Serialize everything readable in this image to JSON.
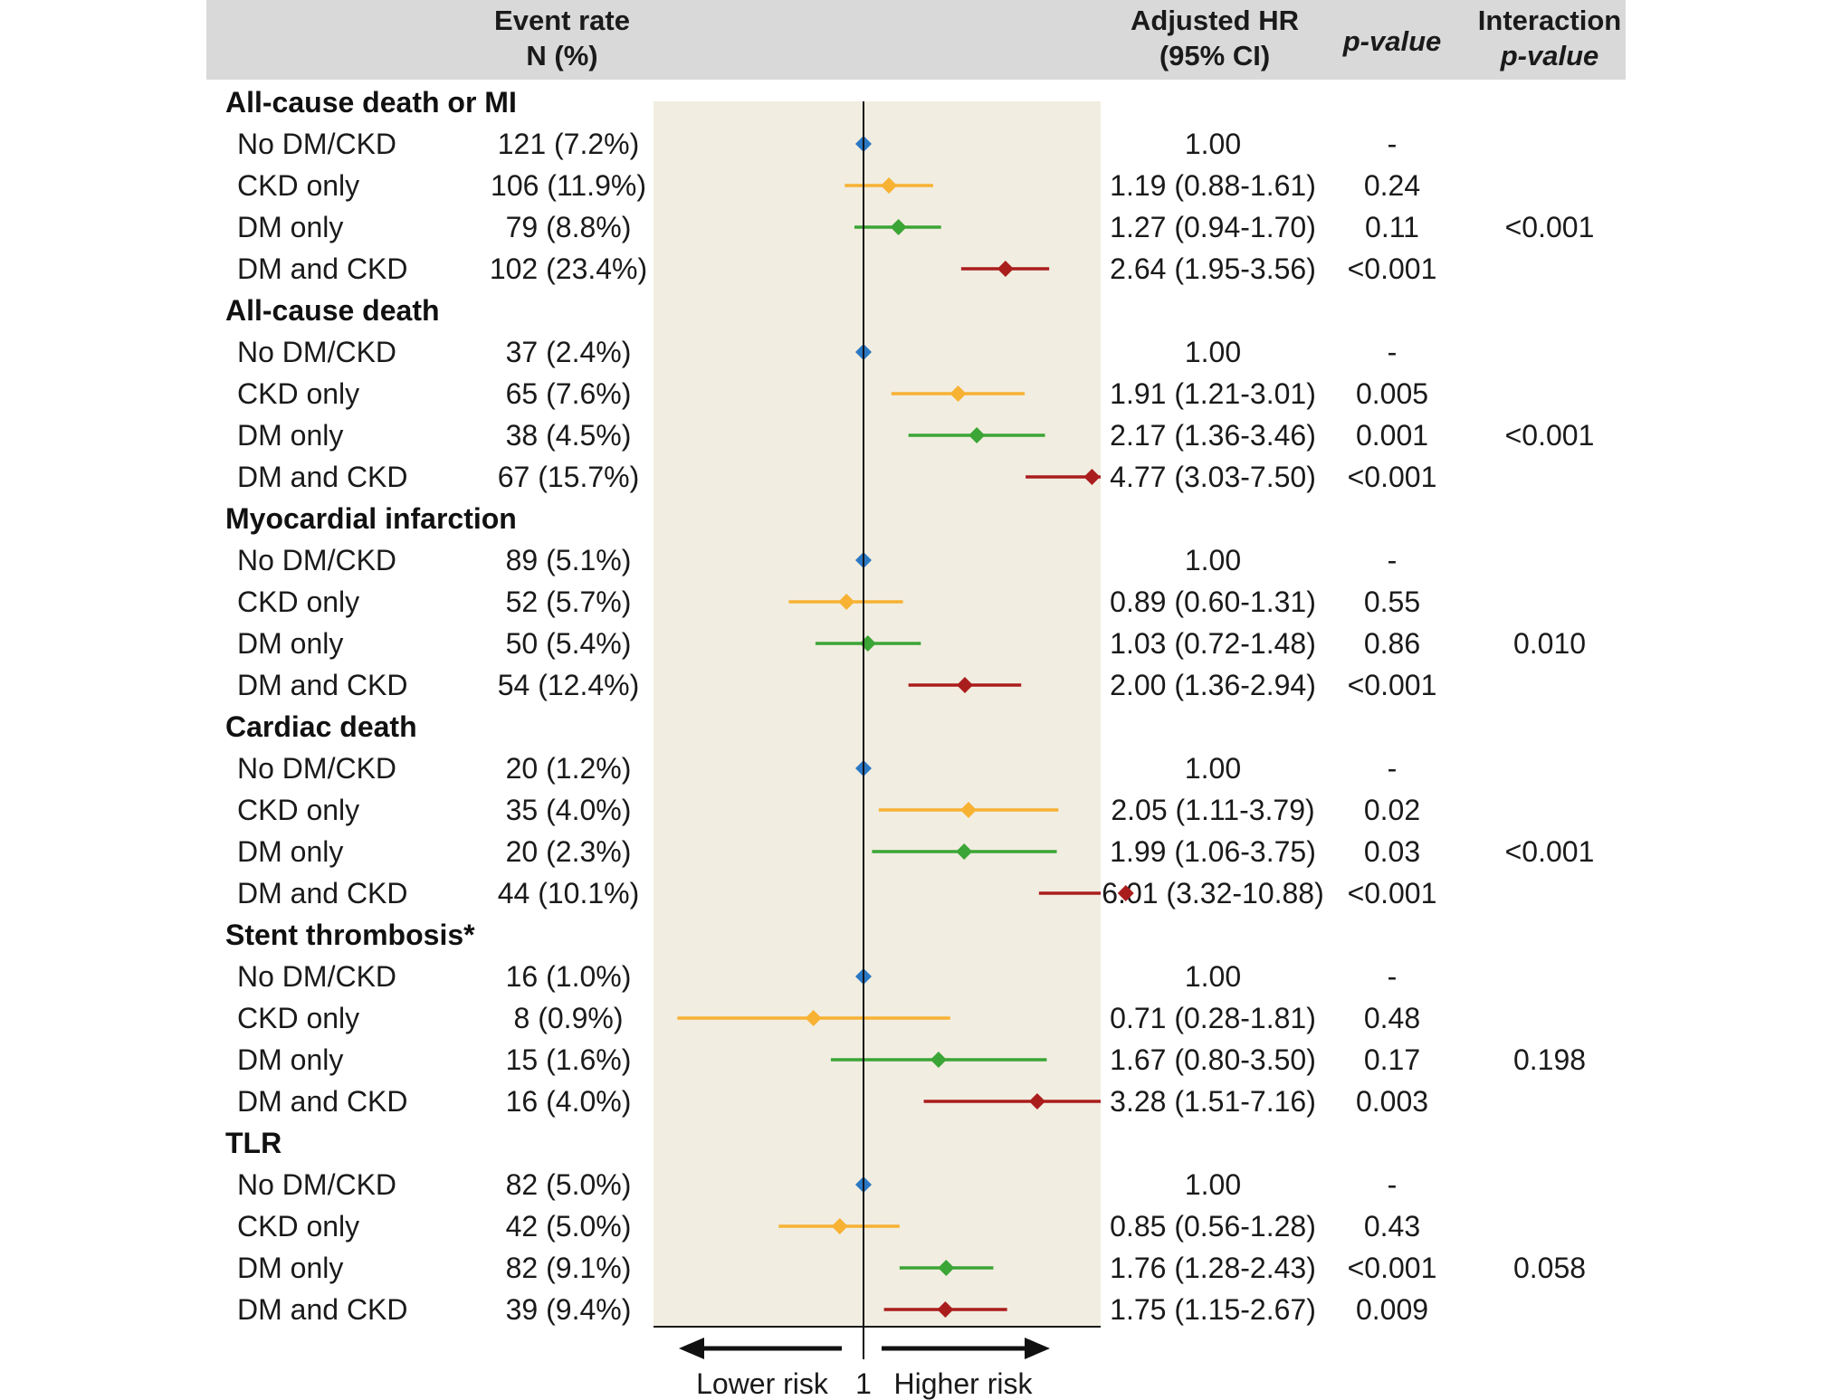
{
  "header": {
    "event_rate_line1": "Event rate",
    "event_rate_line2": "N (%)",
    "hr_line1": "Adjusted HR",
    "hr_line2": "(95% CI)",
    "p_value": "p-value",
    "interaction_line1": "Interaction",
    "interaction_line2": "p-value"
  },
  "colors": {
    "header_bg": "#d9d9d9",
    "plot_bg": "#f1ede0",
    "No DM/CKD": "#2a78c4",
    "CKD only": "#f7b233",
    "DM only": "#3ba535",
    "DM and CKD": "#aa1d1d"
  },
  "chart_data": {
    "type": "forest",
    "title": "",
    "xlabel_left": "Lower risk",
    "xlabel_right": "Higher risk",
    "reference_label": "1",
    "reference_value": 1,
    "scale": "log",
    "x_range": [
      0.25,
      12.5
    ],
    "outcomes": [
      {
        "name": "All-cause death or MI",
        "interaction_p": "<0.001",
        "rows": [
          {
            "group": "No DM/CKD",
            "events": "121 (7.2%)",
            "hr": 1.0,
            "lo": null,
            "hi": null,
            "hr_text": "1.00",
            "p": "-"
          },
          {
            "group": "CKD only",
            "events": "106 (11.9%)",
            "hr": 1.19,
            "lo": 0.88,
            "hi": 1.61,
            "hr_text": "1.19 (0.88-1.61)",
            "p": "0.24"
          },
          {
            "group": "DM only",
            "events": "79 (8.8%)",
            "hr": 1.27,
            "lo": 0.94,
            "hi": 1.7,
            "hr_text": "1.27 (0.94-1.70)",
            "p": "0.11"
          },
          {
            "group": "DM and CKD",
            "events": "102 (23.4%)",
            "hr": 2.64,
            "lo": 1.95,
            "hi": 3.56,
            "hr_text": "2.64 (1.95-3.56)",
            "p": "<0.001"
          }
        ]
      },
      {
        "name": "All-cause death",
        "interaction_p": "<0.001",
        "rows": [
          {
            "group": "No DM/CKD",
            "events": "37 (2.4%)",
            "hr": 1.0,
            "lo": null,
            "hi": null,
            "hr_text": "1.00",
            "p": "-"
          },
          {
            "group": "CKD only",
            "events": "65 (7.6%)",
            "hr": 1.91,
            "lo": 1.21,
            "hi": 3.01,
            "hr_text": "1.91 (1.21-3.01)",
            "p": "0.005"
          },
          {
            "group": "DM only",
            "events": "38 (4.5%)",
            "hr": 2.17,
            "lo": 1.36,
            "hi": 3.46,
            "hr_text": "2.17 (1.36-3.46)",
            "p": "0.001"
          },
          {
            "group": "DM and CKD",
            "events": "67 (15.7%)",
            "hr": 4.77,
            "lo": 3.03,
            "hi": 7.5,
            "hr_text": "4.77 (3.03-7.50)",
            "p": "<0.001"
          }
        ]
      },
      {
        "name": "Myocardial infarction",
        "interaction_p": "0.010",
        "rows": [
          {
            "group": "No DM/CKD",
            "events": "89 (5.1%)",
            "hr": 1.0,
            "lo": null,
            "hi": null,
            "hr_text": "1.00",
            "p": "-"
          },
          {
            "group": "CKD only",
            "events": "52 (5.7%)",
            "hr": 0.89,
            "lo": 0.6,
            "hi": 1.31,
            "hr_text": "0.89 (0.60-1.31)",
            "p": "0.55"
          },
          {
            "group": "DM only",
            "events": "50 (5.4%)",
            "hr": 1.03,
            "lo": 0.72,
            "hi": 1.48,
            "hr_text": "1.03 (0.72-1.48)",
            "p": "0.86"
          },
          {
            "group": "DM and CKD",
            "events": "54 (12.4%)",
            "hr": 2.0,
            "lo": 1.36,
            "hi": 2.94,
            "hr_text": "2.00 (1.36-2.94)",
            "p": "<0.001"
          }
        ]
      },
      {
        "name": "Cardiac death",
        "interaction_p": "<0.001",
        "rows": [
          {
            "group": "No DM/CKD",
            "events": "20 (1.2%)",
            "hr": 1.0,
            "lo": null,
            "hi": null,
            "hr_text": "1.00",
            "p": "-"
          },
          {
            "group": "CKD only",
            "events": "35 (4.0%)",
            "hr": 2.05,
            "lo": 1.11,
            "hi": 3.79,
            "hr_text": "2.05 (1.11-3.79)",
            "p": "0.02"
          },
          {
            "group": "DM only",
            "events": "20 (2.3%)",
            "hr": 1.99,
            "lo": 1.06,
            "hi": 3.75,
            "hr_text": "1.99 (1.06-3.75)",
            "p": "0.03"
          },
          {
            "group": "DM and CKD",
            "events": "44 (10.1%)",
            "hr": 6.01,
            "lo": 3.32,
            "hi": 10.88,
            "hr_text": "6.01 (3.32-10.88)",
            "p": "<0.001"
          }
        ]
      },
      {
        "name": "Stent thrombosis*",
        "interaction_p": "0.198",
        "rows": [
          {
            "group": "No DM/CKD",
            "events": "16 (1.0%)",
            "hr": 1.0,
            "lo": null,
            "hi": null,
            "hr_text": "1.00",
            "p": "-"
          },
          {
            "group": "CKD only",
            "events": "8 (0.9%)",
            "hr": 0.71,
            "lo": 0.28,
            "hi": 1.81,
            "hr_text": "0.71 (0.28-1.81)",
            "p": "0.48"
          },
          {
            "group": "DM only",
            "events": "15 (1.6%)",
            "hr": 1.67,
            "lo": 0.8,
            "hi": 3.5,
            "hr_text": "1.67 (0.80-3.50)",
            "p": "0.17"
          },
          {
            "group": "DM and CKD",
            "events": "16 (4.0%)",
            "hr": 3.28,
            "lo": 1.51,
            "hi": 7.16,
            "hr_text": "3.28 (1.51-7.16)",
            "p": "0.003"
          }
        ]
      },
      {
        "name": "TLR",
        "interaction_p": "0.058",
        "rows": [
          {
            "group": "No DM/CKD",
            "events": "82 (5.0%)",
            "hr": 1.0,
            "lo": null,
            "hi": null,
            "hr_text": "1.00",
            "p": "-"
          },
          {
            "group": "CKD only",
            "events": "42 (5.0%)",
            "hr": 0.85,
            "lo": 0.56,
            "hi": 1.28,
            "hr_text": "0.85 (0.56-1.28)",
            "p": "0.43"
          },
          {
            "group": "DM only",
            "events": "82 (9.1%)",
            "hr": 1.76,
            "lo": 1.28,
            "hi": 2.43,
            "hr_text": "1.76 (1.28-2.43)",
            "p": "<0.001"
          },
          {
            "group": "DM and CKD",
            "events": "39 (9.4%)",
            "hr": 1.75,
            "lo": 1.15,
            "hi": 2.67,
            "hr_text": "1.75 (1.15-2.67)",
            "p": "0.009"
          }
        ]
      }
    ]
  }
}
